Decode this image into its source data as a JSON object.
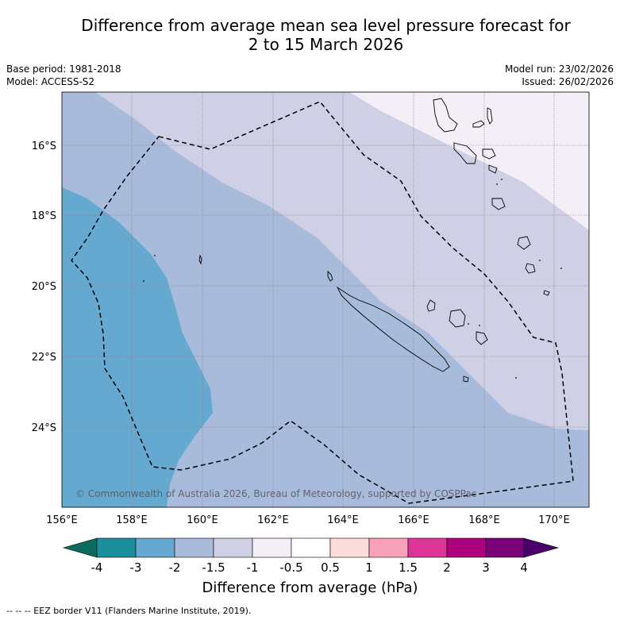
{
  "title": {
    "line1": "Difference from average mean sea level pressure forecast for",
    "line2": "2 to 15 March 2026"
  },
  "meta": {
    "base_period": "Base period: 1981-2018",
    "model": "Model: ACCESS-S2",
    "model_run": "Model run: 23/02/2026",
    "issued": "Issued: 26/02/2026"
  },
  "map": {
    "lon_ticks": [
      "156°E",
      "158°E",
      "160°E",
      "162°E",
      "164°E",
      "166°E",
      "168°E",
      "170°E"
    ],
    "lat_ticks": [
      "16°S",
      "18°S",
      "20°S",
      "22°S",
      "24°S"
    ],
    "copyright": "© Commonwealth of Australia 2026, Bureau of Meteorology, supported by COSPPac",
    "colors": {
      "c_m4": "#1b8f9b",
      "c_m3": "#66a9d0",
      "c_m2": "#a9bbdb",
      "c_m15": "#cfd0e5",
      "c_m1": "#f4eef6",
      "c_0": "#ffffff",
      "c_p05": "#fddcdc",
      "c_p1": "#f9a0bb",
      "c_p15": "#dd3497",
      "c_p2": "#ae017e",
      "c_p3": "#7a0177",
      "c_p4": "#49006a",
      "under": "#0b6b5e"
    }
  },
  "colorbar": {
    "labels": [
      "-4",
      "-3",
      "-2",
      "-1.5",
      "-1",
      "-0.5",
      "0.5",
      "1",
      "1.5",
      "2",
      "3",
      "4"
    ],
    "title": "Difference from average (hPa)"
  },
  "footer": "--  --  -- EEZ border V11 (Flanders Marine Institute, 2019)."
}
